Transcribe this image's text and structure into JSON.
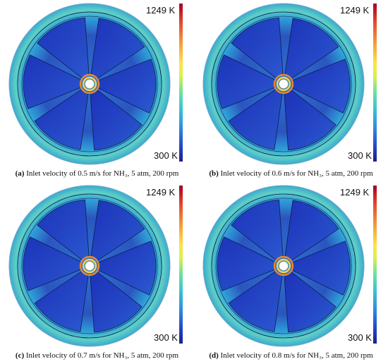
{
  "colorbar": {
    "max_label": "1249 K",
    "min_label": "300 K",
    "colors": [
      "#a50026",
      "#ffe34a",
      "#3bc6d2",
      "#1a1f8a"
    ]
  },
  "panels": [
    {
      "letter": "(a)",
      "caption": "Inlet velocity of 0.5 m/s for NH₃, 5 atm, 200 rpm"
    },
    {
      "letter": "(b)",
      "caption": "Inlet velocity of 0.6 m/s for NH₃, 5 atm, 200 rpm"
    },
    {
      "letter": "(c)",
      "caption": "Inlet velocity of 0.7 m/s for NH₃, 5 atm, 200 rpm"
    },
    {
      "letter": "(d)",
      "caption": "Inlet velocity of 0.8 m/s for NH₃, 5 atm, 200 rpm"
    }
  ]
}
